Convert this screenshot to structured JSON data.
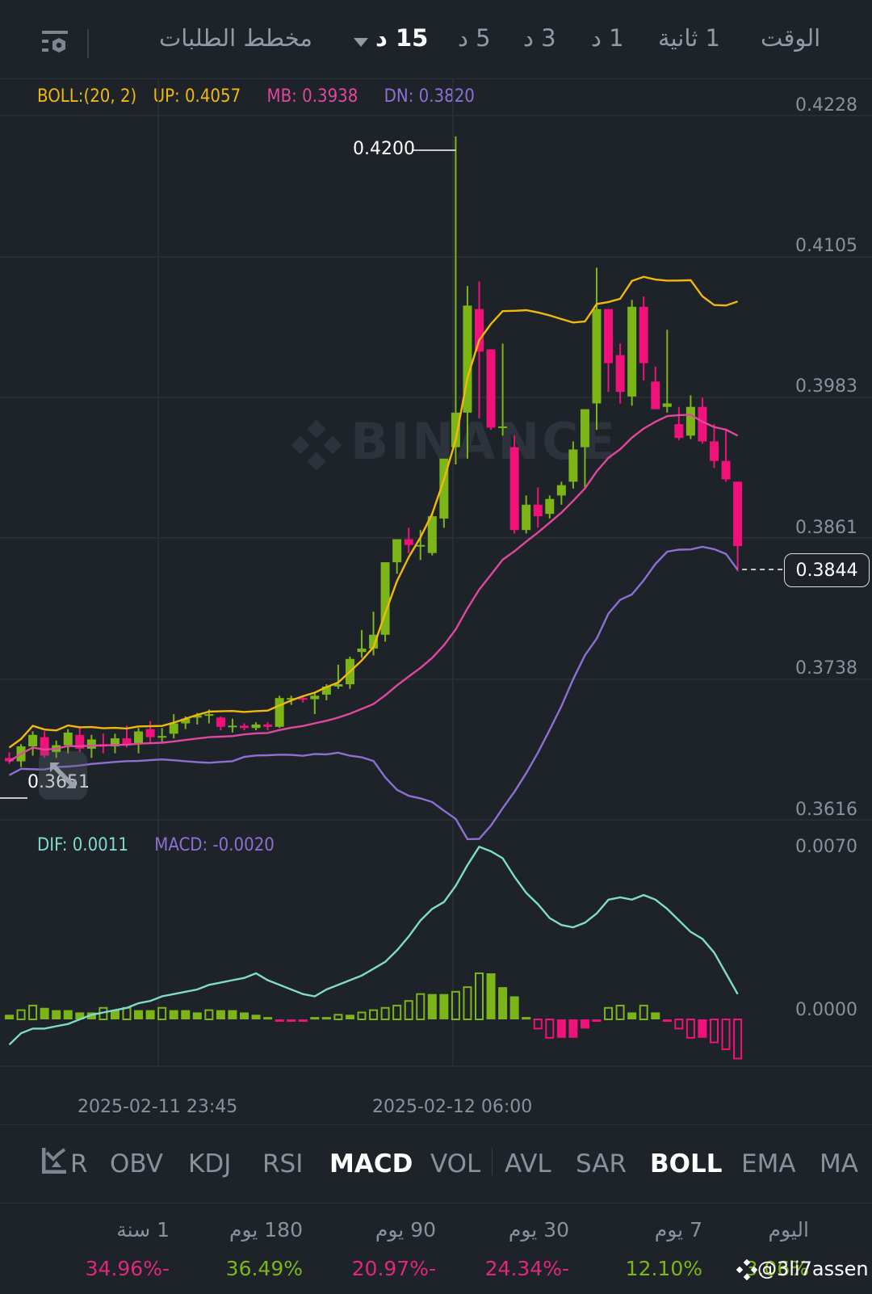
{
  "topbar": {
    "intervals": [
      {
        "label": "الوقت",
        "active": false
      },
      {
        "label": "1 ثانية",
        "active": false
      },
      {
        "label": "1 د",
        "active": false
      },
      {
        "label": "3 د",
        "active": false
      },
      {
        "label": "5 د",
        "active": false
      },
      {
        "label": "15 د",
        "active": true
      }
    ],
    "dropdown_icon": "triangle-down-icon",
    "depth_chart_label": "مخطط الطلبات",
    "settings_icon": "chart-settings-icon"
  },
  "boll_legend": {
    "params": "BOLL:(20, 2)",
    "up": "UP: 0.4057",
    "mb": "MB: 0.3938",
    "dn": "DN: 0.3820",
    "colors": {
      "up": "#f0b90b",
      "mb": "#e0479e",
      "dn": "#8e6fd3"
    }
  },
  "macd_legend": {
    "dif": "DIF: 0.0011",
    "macd": "MACD: -0.0020",
    "colors": {
      "dif": "#7fdbca",
      "macd": "#8e6fd3"
    }
  },
  "price_axis": [
    "0.4228",
    "0.4105",
    "0.3983",
    "0.3861",
    "0.3738",
    "0.3616"
  ],
  "macd_axis": [
    "0.0070",
    "0.0000"
  ],
  "annotations": {
    "high_marker": "0.4200",
    "low_marker": "0.3651",
    "current_price": "0.3844"
  },
  "time_axis": [
    "2025-02-11 23:45",
    "2025-02-12 06:00"
  ],
  "watermark_brand": "BINANCE",
  "indicator_tabs": [
    {
      "label": "MA",
      "active": false
    },
    {
      "label": "EMA",
      "active": false
    },
    {
      "label": "BOLL",
      "active": true
    },
    {
      "label": "SAR",
      "active": false
    },
    {
      "label": "AVL",
      "active": false
    },
    {
      "label": "VOL",
      "active": false
    },
    {
      "label": "MACD",
      "active": true
    },
    {
      "label": "RSI",
      "active": false
    },
    {
      "label": "KDJ",
      "active": false
    },
    {
      "label": "OBV",
      "active": false
    },
    {
      "label": "R",
      "active": false
    }
  ],
  "indicator_settings_icon": "indicator-chart-icon",
  "performance": [
    {
      "label": "اليوم",
      "value": "3.06%",
      "color": "#7cb518"
    },
    {
      "label": "7 يوم",
      "value": "12.10%",
      "color": "#7cb518"
    },
    {
      "label": "30 يوم",
      "value": "24.34%-",
      "color": "#e0267d"
    },
    {
      "label": "90 يوم",
      "value": "20.97%-",
      "color": "#e0267d"
    },
    {
      "label": "180 يوم",
      "value": "36.49%",
      "color": "#7cb518"
    },
    {
      "label": "1 سنة",
      "value": "34.96%-",
      "color": "#e0267d"
    }
  ],
  "user_watermark": "@3li7assen",
  "colors": {
    "background": "#1e2329",
    "up": "#7cb518",
    "down": "#f0127a",
    "grid": "#2b3139"
  },
  "chart_data": [
    {
      "type": "candlestick",
      "title": "BOLL (20, 2) — 15m",
      "interval": "15 د",
      "ylim": [
        0.3616,
        0.4228
      ],
      "yticks": [
        0.4228,
        0.4105,
        0.3983,
        0.3861,
        0.3738,
        0.3616
      ],
      "xticks": [
        "2025-02-11 23:45",
        "2025-02-12 06:00"
      ],
      "grid": true,
      "candles": [
        {
          "o": 0.366,
          "h": 0.3665,
          "l": 0.3655,
          "c": 0.3657
        },
        {
          "o": 0.3657,
          "h": 0.3672,
          "l": 0.3652,
          "c": 0.367
        },
        {
          "o": 0.367,
          "h": 0.3683,
          "l": 0.3662,
          "c": 0.368
        },
        {
          "o": 0.3678,
          "h": 0.3683,
          "l": 0.366,
          "c": 0.3662
        },
        {
          "o": 0.3665,
          "h": 0.3675,
          "l": 0.366,
          "c": 0.3671
        },
        {
          "o": 0.3671,
          "h": 0.3685,
          "l": 0.3664,
          "c": 0.3682
        },
        {
          "o": 0.368,
          "h": 0.3686,
          "l": 0.3665,
          "c": 0.3668
        },
        {
          "o": 0.3668,
          "h": 0.368,
          "l": 0.366,
          "c": 0.3676
        },
        {
          "o": 0.3672,
          "h": 0.3681,
          "l": 0.3664,
          "c": 0.367
        },
        {
          "o": 0.367,
          "h": 0.3681,
          "l": 0.3664,
          "c": 0.3677
        },
        {
          "o": 0.3677,
          "h": 0.3688,
          "l": 0.3669,
          "c": 0.3672
        },
        {
          "o": 0.3672,
          "h": 0.3686,
          "l": 0.3664,
          "c": 0.3683
        },
        {
          "o": 0.3685,
          "h": 0.3692,
          "l": 0.3672,
          "c": 0.3678
        },
        {
          "o": 0.3678,
          "h": 0.3686,
          "l": 0.3674,
          "c": 0.3679
        },
        {
          "o": 0.3681,
          "h": 0.3698,
          "l": 0.3677,
          "c": 0.369
        },
        {
          "o": 0.369,
          "h": 0.3696,
          "l": 0.3685,
          "c": 0.3694
        },
        {
          "o": 0.3695,
          "h": 0.3699,
          "l": 0.3689,
          "c": 0.3697
        },
        {
          "o": 0.3697,
          "h": 0.3702,
          "l": 0.369,
          "c": 0.3698
        },
        {
          "o": 0.3695,
          "h": 0.3696,
          "l": 0.3684,
          "c": 0.3687
        },
        {
          "o": 0.3687,
          "h": 0.3694,
          "l": 0.3682,
          "c": 0.3688
        },
        {
          "o": 0.3688,
          "h": 0.369,
          "l": 0.3684,
          "c": 0.3686
        },
        {
          "o": 0.3686,
          "h": 0.3691,
          "l": 0.3684,
          "c": 0.3689
        },
        {
          "o": 0.3689,
          "h": 0.3691,
          "l": 0.3684,
          "c": 0.3687
        },
        {
          "o": 0.3687,
          "h": 0.3714,
          "l": 0.3686,
          "c": 0.3712
        },
        {
          "o": 0.3712,
          "h": 0.3714,
          "l": 0.3706,
          "c": 0.3712
        },
        {
          "o": 0.3712,
          "h": 0.3714,
          "l": 0.3708,
          "c": 0.3711
        },
        {
          "o": 0.3711,
          "h": 0.3716,
          "l": 0.3698,
          "c": 0.3714
        },
        {
          "o": 0.3715,
          "h": 0.3724,
          "l": 0.371,
          "c": 0.3722
        },
        {
          "o": 0.3722,
          "h": 0.3741,
          "l": 0.372,
          "c": 0.3724
        },
        {
          "o": 0.3724,
          "h": 0.3748,
          "l": 0.372,
          "c": 0.3746
        },
        {
          "o": 0.3752,
          "h": 0.3771,
          "l": 0.3747,
          "c": 0.3755
        },
        {
          "o": 0.3755,
          "h": 0.3787,
          "l": 0.3749,
          "c": 0.3767
        },
        {
          "o": 0.3767,
          "h": 0.382,
          "l": 0.3761,
          "c": 0.383
        },
        {
          "o": 0.383,
          "h": 0.384,
          "l": 0.382,
          "c": 0.385
        },
        {
          "o": 0.385,
          "h": 0.386,
          "l": 0.3838,
          "c": 0.3845
        },
        {
          "o": 0.3844,
          "h": 0.3858,
          "l": 0.3832,
          "c": 0.3845
        },
        {
          "o": 0.3838,
          "h": 0.3873,
          "l": 0.3836,
          "c": 0.387
        },
        {
          "o": 0.3868,
          "h": 0.389,
          "l": 0.386,
          "c": 0.392
        },
        {
          "o": 0.393,
          "h": 0.42,
          "l": 0.3915,
          "c": 0.396
        },
        {
          "o": 0.396,
          "h": 0.407,
          "l": 0.392,
          "c": 0.4053
        },
        {
          "o": 0.405,
          "h": 0.4074,
          "l": 0.3955,
          "c": 0.4013
        },
        {
          "o": 0.4015,
          "h": 0.4015,
          "l": 0.3945,
          "c": 0.3947
        },
        {
          "o": 0.3947,
          "h": 0.402,
          "l": 0.394,
          "c": 0.3948
        },
        {
          "o": 0.393,
          "h": 0.394,
          "l": 0.3855,
          "c": 0.3858
        },
        {
          "o": 0.3858,
          "h": 0.3888,
          "l": 0.3855,
          "c": 0.388
        },
        {
          "o": 0.388,
          "h": 0.3895,
          "l": 0.386,
          "c": 0.387
        },
        {
          "o": 0.3872,
          "h": 0.3888,
          "l": 0.3868,
          "c": 0.3885
        },
        {
          "o": 0.3888,
          "h": 0.39,
          "l": 0.388,
          "c": 0.3897
        },
        {
          "o": 0.39,
          "h": 0.3935,
          "l": 0.3894,
          "c": 0.3928
        },
        {
          "o": 0.393,
          "h": 0.3945,
          "l": 0.3895,
          "c": 0.3963
        },
        {
          "o": 0.3968,
          "h": 0.4086,
          "l": 0.3945,
          "c": 0.405
        },
        {
          "o": 0.405,
          "h": 0.405,
          "l": 0.3978,
          "c": 0.4003
        },
        {
          "o": 0.401,
          "h": 0.402,
          "l": 0.3968,
          "c": 0.3978
        },
        {
          "o": 0.3974,
          "h": 0.4058,
          "l": 0.3966,
          "c": 0.4052
        },
        {
          "o": 0.4052,
          "h": 0.4061,
          "l": 0.3988,
          "c": 0.4003
        },
        {
          "o": 0.3987,
          "h": 0.4,
          "l": 0.3963,
          "c": 0.3963
        },
        {
          "o": 0.3965,
          "h": 0.4032,
          "l": 0.396,
          "c": 0.3968
        },
        {
          "o": 0.395,
          "h": 0.3965,
          "l": 0.3936,
          "c": 0.3938
        },
        {
          "o": 0.394,
          "h": 0.3975,
          "l": 0.3937,
          "c": 0.3965
        },
        {
          "o": 0.3965,
          "h": 0.3973,
          "l": 0.3933,
          "c": 0.3935
        },
        {
          "o": 0.3935,
          "h": 0.395,
          "l": 0.3912,
          "c": 0.3918
        },
        {
          "o": 0.3918,
          "h": 0.3945,
          "l": 0.39,
          "c": 0.3902
        },
        {
          "o": 0.39,
          "h": 0.39,
          "l": 0.3822,
          "c": 0.3844
        }
      ],
      "series": [
        {
          "name": "UP",
          "last": 0.4057,
          "color": "#f0b90b"
        },
        {
          "name": "MB",
          "last": 0.3938,
          "color": "#e0479e"
        },
        {
          "name": "DN",
          "last": 0.382,
          "color": "#8e6fd3"
        }
      ],
      "annotations": [
        {
          "text": "0.4200",
          "type": "max"
        },
        {
          "text": "0.3651",
          "type": "min"
        },
        {
          "text": "0.3844",
          "type": "last_price"
        }
      ]
    },
    {
      "type": "bar+line",
      "title": "MACD",
      "ylim": [
        -0.0015,
        0.007
      ],
      "yticks": [
        0.007,
        0.0
      ],
      "series": [
        {
          "name": "DIF",
          "last": 0.0011,
          "color": "#7fdbca"
        },
        {
          "name": "MACD",
          "last": -0.002,
          "color": "#8e6fd3"
        }
      ],
      "histogram": [
        0.0002,
        0.0004,
        0.0006,
        0.0005,
        0.0004,
        0.0004,
        0.0003,
        0.0003,
        0.0005,
        0.0004,
        0.0005,
        0.0004,
        0.0004,
        0.0005,
        0.0004,
        0.0004,
        0.0003,
        0.0004,
        0.0004,
        0.0004,
        0.0003,
        0.0002,
        0.0001,
        -0.0001,
        -0.0001,
        -0.0001,
        0.0001,
        0.0001,
        0.0002,
        0.0002,
        0.0003,
        0.0004,
        0.0005,
        0.0006,
        0.0008,
        0.0011,
        0.0011,
        0.0011,
        0.0012,
        0.0014,
        0.002,
        0.002,
        0.0014,
        0.001,
        0.0001,
        -0.0004,
        -0.0008,
        -0.0008,
        -0.0008,
        -0.0004,
        -0.0001,
        0.0005,
        0.0006,
        0.0003,
        0.0006,
        0.0003,
        -0.0001,
        -0.0004,
        -0.0008,
        -0.0008,
        -0.001,
        -0.0013,
        -0.0017
      ]
    }
  ]
}
